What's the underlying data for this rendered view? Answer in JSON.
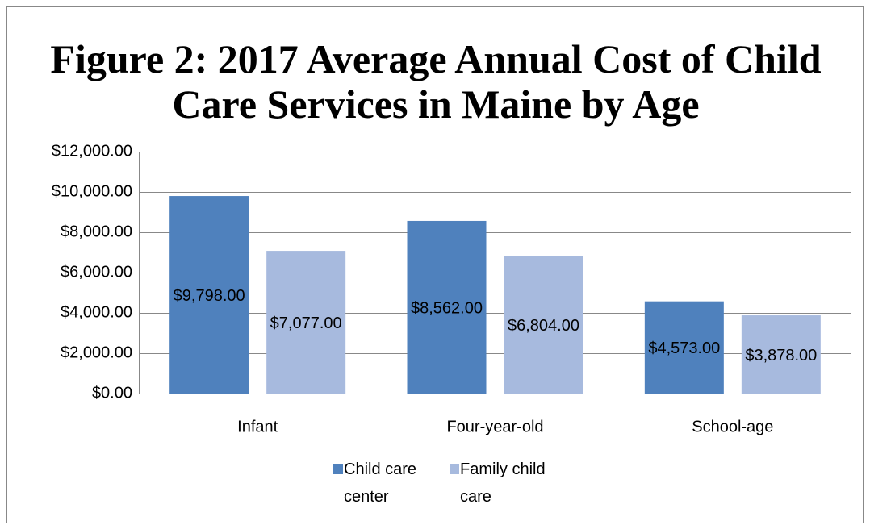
{
  "chart_data": {
    "type": "bar",
    "title": "Figure 2: 2017 Average Annual Cost of Child Care Services in Maine by Age",
    "categories": [
      "Infant",
      "Four-year-old",
      "School-age"
    ],
    "series": [
      {
        "name": "Child care center",
        "color": "#4f81bd",
        "values": [
          9798,
          8562,
          4573
        ],
        "value_labels": [
          "$9,798.00",
          "$8,562.00",
          "$4,573.00"
        ]
      },
      {
        "name": "Family child care",
        "color": "#a7bade",
        "values": [
          7077,
          6804,
          3878
        ],
        "value_labels": [
          "$7,077.00",
          "$6,804.00",
          "$3,878.00"
        ]
      }
    ],
    "ylim": [
      0,
      12000
    ],
    "yticks": [
      {
        "value": 0,
        "label": "$0.00"
      },
      {
        "value": 2000,
        "label": "$2,000.00"
      },
      {
        "value": 4000,
        "label": "$4,000.00"
      },
      {
        "value": 6000,
        "label": "$6,000.00"
      },
      {
        "value": 8000,
        "label": "$8,000.00"
      },
      {
        "value": 10000,
        "label": "$10,000.00"
      },
      {
        "value": 12000,
        "label": "$12,000.00"
      }
    ],
    "grid": true,
    "legend": "bottom"
  }
}
